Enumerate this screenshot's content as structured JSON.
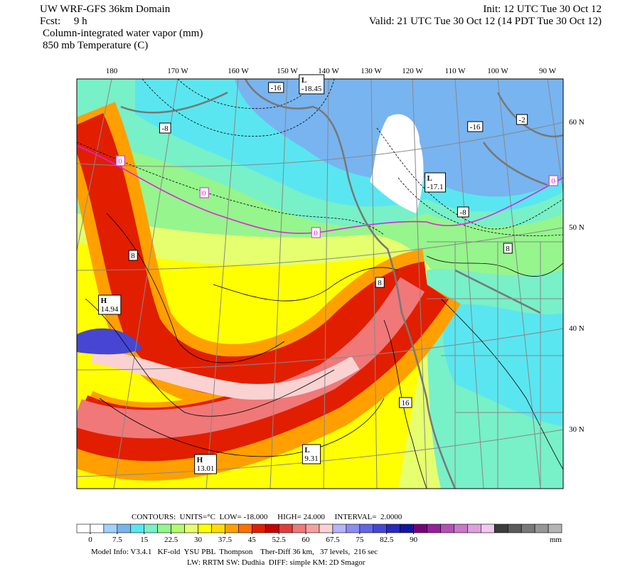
{
  "header": {
    "model": "UW WRF-GFS 36km Domain",
    "forecast": "Fcst:     9 h",
    "init": "Init: 12 UTC Tue 30 Oct 12",
    "valid": "Valid: 21 UTC Tue 30 Oct 12 (14 PDT Tue 30 Oct 12)",
    "field1": "Column-integrated water vapor (mm)",
    "field2": "850 mb Temperature (C)"
  },
  "map": {
    "lon_labels": [
      "180",
      "170 W",
      "160 W",
      "150 W",
      "140 W",
      "130 W",
      "120 W",
      "110 W",
      "100 W",
      "90 W"
    ],
    "lat_labels": [
      "60 N",
      "50 N",
      "40 N",
      "30 N"
    ],
    "contour_labels": [
      "-16",
      "-8",
      "-16",
      "-2",
      "-8",
      "8",
      "8",
      "8",
      "16"
    ],
    "zero_labels": [
      "0",
      "0",
      "0",
      "0"
    ],
    "zero_color": "#e020e0",
    "centers": [
      {
        "symbol": "L",
        "value": "-18.45"
      },
      {
        "symbol": "L",
        "value": "-17.1"
      },
      {
        "symbol": "H",
        "value": "14.94"
      },
      {
        "symbol": "H",
        "value": "13.01"
      },
      {
        "symbol": "L",
        "value": "9.31"
      }
    ]
  },
  "legend": {
    "contours": "CONTOURS:  UNITS=°C  LOW= -18.000     HIGH= 24.000     INTERVAL=  2.0000",
    "lim": [
      -3.75,
      131.25
    ],
    "ticks": [
      0,
      7.5,
      15,
      22.5,
      30,
      37.5,
      45,
      52.5,
      60,
      67.5,
      75,
      82.5,
      90
    ],
    "unit": "mm",
    "colors": [
      "#ffffff",
      "#ffffff",
      "#a0d2fa",
      "#78b4f0",
      "#5ae6f0",
      "#78f0c8",
      "#96f58c",
      "#b4fa6e",
      "#e6ff6e",
      "#ffff00",
      "#ffdc00",
      "#ffa000",
      "#ff7000",
      "#e11e00",
      "#c80000",
      "#e13c3c",
      "#f07878",
      "#f5a0a0",
      "#fad2d2",
      "#b4b4ff",
      "#8c8cf0",
      "#6464e6",
      "#4646d2",
      "#2828be",
      "#1414a0",
      "#780078",
      "#96209a",
      "#b450b4",
      "#c878c8",
      "#dca0dc",
      "#f0c8f0",
      "#3c3c3c",
      "#5a5a5a",
      "#787878",
      "#969696",
      "#b4b4b4"
    ]
  },
  "footer": {
    "line1": "Model Info: V3.4.1   KF-old  YSU PBL  Thompson    Ther-Diff 36 km,   37 levels,  216 sec",
    "line2": "LW: RRTM SW: Dudhia  DIFF: simple KM: 2D Smagor"
  }
}
